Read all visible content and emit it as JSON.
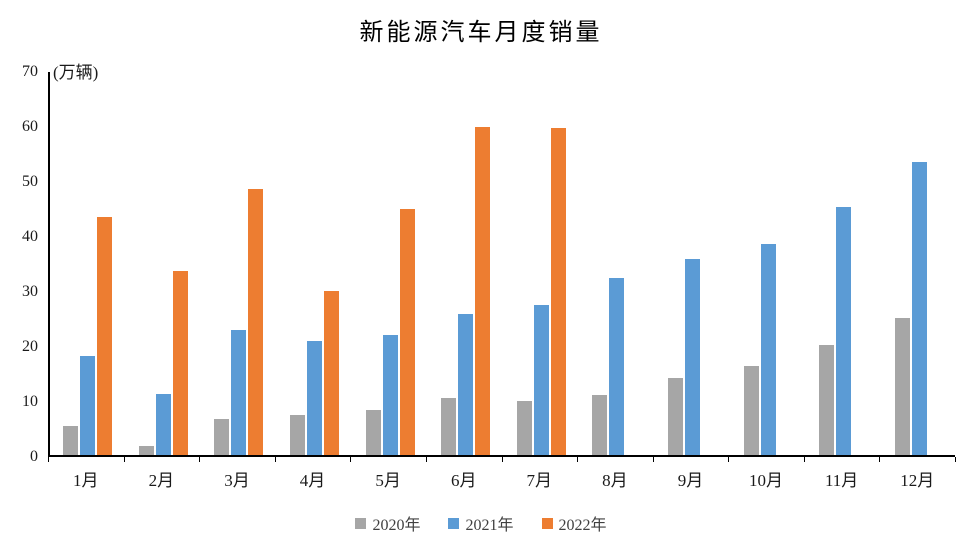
{
  "chart_data": {
    "type": "bar",
    "title": "新能源汽车月度销量",
    "unit_label": "(万辆)",
    "categories": [
      "1月",
      "2月",
      "3月",
      "4月",
      "5月",
      "6月",
      "7月",
      "8月",
      "9月",
      "10月",
      "11月",
      "12月"
    ],
    "series": [
      {
        "name": "2020年",
        "color": "#A6A6A6",
        "values": [
          5.2,
          1.6,
          6.5,
          7.3,
          8.1,
          10.3,
          9.8,
          10.9,
          14.0,
          16.1,
          20.0,
          24.9
        ]
      },
      {
        "name": "2021年",
        "color": "#5B9BD5",
        "values": [
          18.0,
          11.1,
          22.7,
          20.7,
          21.8,
          25.6,
          27.2,
          32.1,
          35.7,
          38.4,
          45.1,
          53.2
        ]
      },
      {
        "name": "2022年",
        "color": "#ED7D31",
        "values": [
          43.2,
          33.4,
          48.4,
          29.9,
          44.8,
          59.7,
          59.4,
          null,
          null,
          null,
          null,
          null
        ]
      }
    ],
    "yticks": [
      0,
      10,
      20,
      30,
      40,
      50,
      60,
      70
    ],
    "ylim": [
      0,
      70
    ],
    "xlabel": "",
    "ylabel": "(万辆)",
    "grid": false,
    "legend_position": "bottom",
    "axis_color": "#000000",
    "background_color": "#ffffff"
  }
}
